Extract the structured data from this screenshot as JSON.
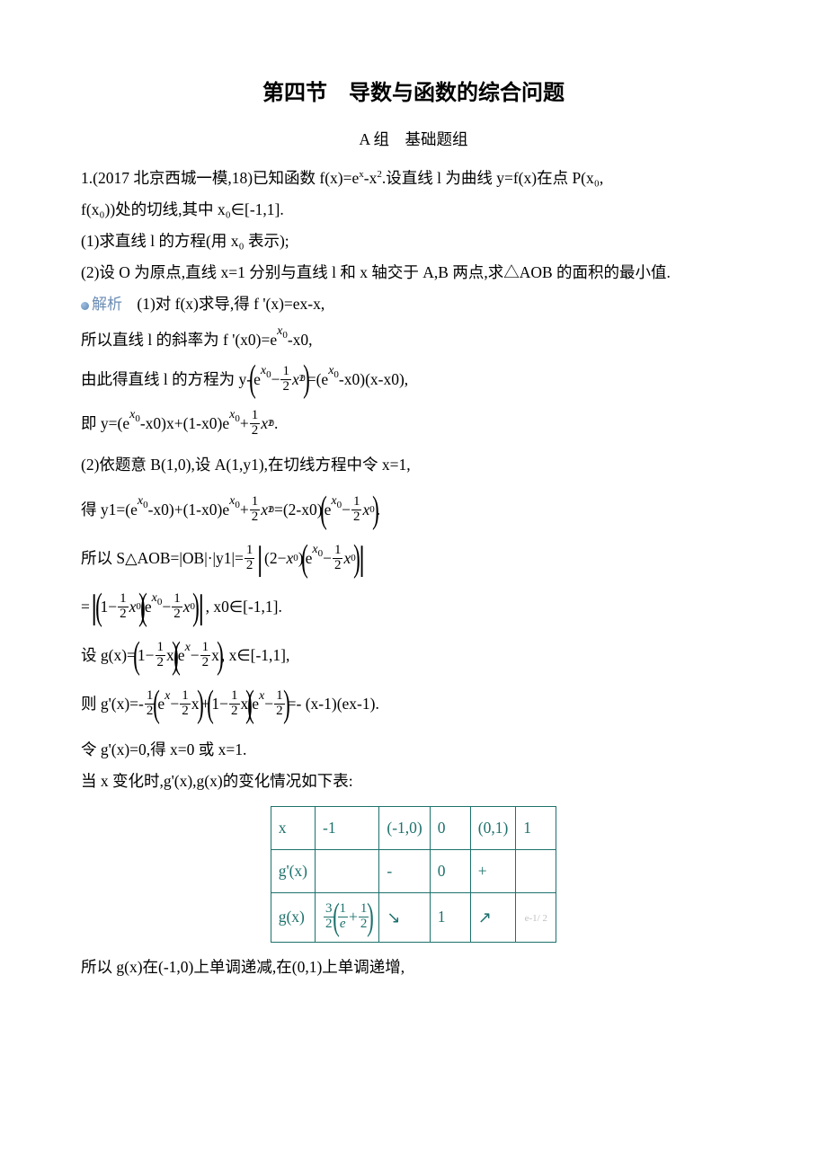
{
  "title": "第四节　导数与函数的综合问题",
  "subtitle": "A 组　基础题组",
  "p1_a": "1.(2017 北京西城一模,18)已知函数 f(x)=e",
  "p1_b": "-x",
  "p1_c": ".设直线 l 为曲线 y=f(x)在点 P(x₀,",
  "p2": "f(x₀))处的切线,其中 x₀∈[-1,1].",
  "p3": "(1)求直线 l 的方程(用 x₀ 表示);",
  "p4": "(2)设 O 为原点,直线 x=1 分别与直线 l 和 x 轴交于 A,B 两点,求△AOB 的面积的最小值.",
  "ana_label": "解析",
  "p5": "(1)对 f(x)求导,得 f '(x)=ex-x,",
  "p6_pre": "所以直线 l 的斜率为 f '(x0)=e",
  "p6_exp": "x₀",
  "p6_post": "-x0,",
  "p7_pre": "由此得直线 l 的方程为 y-",
  "p7_mid": "=(e",
  "p7_post": "-x0)(x-x0),",
  "p8_pre": "即 y=(e",
  "p8_mid": "-x0)x+(1-x0)e",
  "p8_post": "+",
  "p8_end": ".",
  "p9": "(2)依题意 B(1,0),设 A(1,y1),在切线方程中令 x=1,",
  "p10_pre": "得 y1=(e",
  "p10_a": "-x0)+(1-x0)e",
  "p10_b": "+",
  "p10_c": "=(2-x0)",
  "p10_end": ".",
  "p11_pre": "所以 S△AOB=|OB|·|y1|=",
  "p12_end": ", x0∈[-1,1].",
  "p13_pre": "设 g(x)=",
  "p13_end": ", x∈[-1,1],",
  "p14_pre": "则 g'(x)=-",
  "p14_mid": "+",
  "p14_end": "=-  (x-1)(ex-1).",
  "p15": "令 g'(x)=0,得 x=0 或 x=1.",
  "p16": "当 x 变化时,g'(x),g(x)的变化情况如下表:",
  "table": {
    "header": [
      "x",
      "-1",
      "(-1,0)",
      "0",
      "(0,1)",
      "1"
    ],
    "row1": [
      "g'(x)",
      "",
      "-",
      "0",
      "+",
      ""
    ],
    "row2_label": "g(x)",
    "row2_c3": "↘",
    "row2_c4": "1",
    "row2_c5": "↗",
    "row2_c6_glyph": "e-1/ 2"
  },
  "p17": "所以 g(x)在(-1,0)上单调递减,在(0,1)上单调递增,",
  "math": {
    "x0": "x",
    "x0sub": "0",
    "half_num": "1",
    "half_den": "2",
    "x02": "x",
    "x02sup": "2",
    "x02sub": "0",
    "e": "e",
    "minus": " − ",
    "two": "2",
    "one": "1",
    "three": "3",
    "inv_e": "e",
    "plus": " + ",
    "x": "x"
  }
}
